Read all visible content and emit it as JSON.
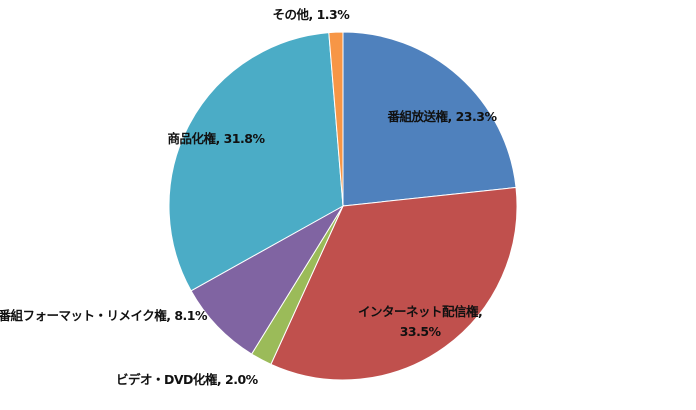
{
  "chart_data": {
    "type": "pie",
    "start_angle": "12 o'clock",
    "direction": "clockwise",
    "slices": [
      {
        "name": "番組放送権",
        "value": 23.3,
        "color": "#4F81BD"
      },
      {
        "name": "インターネット配信権",
        "value": 33.5,
        "color": "#C0504D"
      },
      {
        "name": "ビデオ・DVD化権",
        "value": 2.0,
        "color": "#9BBB59"
      },
      {
        "name": "番組フォーマット・リメイク権",
        "value": 8.1,
        "color": "#8064A2"
      },
      {
        "name": "商品化権",
        "value": 31.8,
        "color": "#4BACC6"
      },
      {
        "name": "その他",
        "value": 1.3,
        "color": "#F79646"
      }
    ],
    "value_suffix": "%",
    "legend": "none"
  }
}
